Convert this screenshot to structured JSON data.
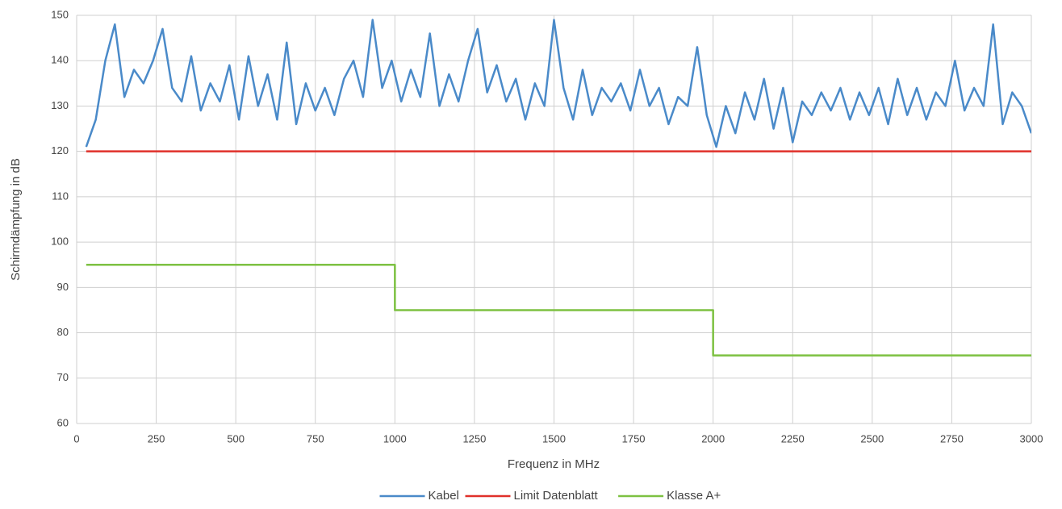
{
  "chart_data": {
    "type": "line",
    "x_label": "Frequenz in MHz",
    "y_label": "Schirmdämpfung in dB",
    "xlim": [
      0,
      3000
    ],
    "xticks": [
      0,
      250,
      500,
      750,
      1000,
      1250,
      1500,
      1750,
      2000,
      2250,
      2500,
      2750,
      3000
    ],
    "ylim": [
      60,
      150
    ],
    "yticks": [
      60,
      70,
      80,
      90,
      100,
      110,
      120,
      130,
      140,
      150
    ],
    "grid": true,
    "legend": "bottom",
    "series": [
      {
        "name": "Kabel",
        "color": "#4a8ac9",
        "x": [
          30,
          60,
          90,
          120,
          150,
          180,
          210,
          240,
          270,
          300,
          330,
          360,
          390,
          420,
          450,
          480,
          510,
          540,
          570,
          600,
          630,
          660,
          690,
          720,
          750,
          780,
          810,
          840,
          870,
          900,
          930,
          960,
          990,
          1020,
          1050,
          1080,
          1110,
          1140,
          1170,
          1200,
          1230,
          1260,
          1290,
          1320,
          1350,
          1380,
          1410,
          1440,
          1470,
          1500,
          1530,
          1560,
          1590,
          1620,
          1650,
          1680,
          1710,
          1740,
          1770,
          1800,
          1830,
          1860,
          1890,
          1920,
          1950,
          1980,
          2010,
          2040,
          2070,
          2100,
          2130,
          2160,
          2190,
          2220,
          2250,
          2280,
          2310,
          2340,
          2370,
          2400,
          2430,
          2460,
          2490,
          2520,
          2550,
          2580,
          2610,
          2640,
          2670,
          2700,
          2730,
          2760,
          2790,
          2820,
          2850,
          2880,
          2910,
          2940,
          2970,
          3000
        ],
        "values": [
          121,
          127,
          140,
          148,
          132,
          138,
          135,
          140,
          147,
          134,
          131,
          141,
          129,
          135,
          131,
          139,
          127,
          141,
          130,
          137,
          127,
          144,
          126,
          135,
          129,
          134,
          128,
          136,
          140,
          132,
          149,
          134,
          140,
          131,
          138,
          132,
          146,
          130,
          137,
          131,
          140,
          147,
          133,
          139,
          131,
          136,
          127,
          135,
          130,
          149,
          134,
          127,
          138,
          128,
          134,
          131,
          135,
          129,
          138,
          130,
          134,
          126,
          132,
          130,
          143,
          128,
          121,
          130,
          124,
          133,
          127,
          136,
          125,
          134,
          122,
          131,
          128,
          133,
          129,
          134,
          127,
          133,
          128,
          134,
          126,
          136,
          128,
          134,
          127,
          133,
          130,
          140,
          129,
          134,
          130,
          148,
          126,
          133,
          130,
          124
        ]
      },
      {
        "name": "Limit Datenblatt",
        "color": "#e0302a",
        "x": [
          30,
          3000
        ],
        "values": [
          120,
          120
        ]
      },
      {
        "name": "Klasse A+",
        "color": "#7dc142",
        "x": [
          30,
          1000,
          1000,
          2000,
          2000,
          3000
        ],
        "values": [
          95,
          95,
          85,
          85,
          75,
          75
        ]
      }
    ]
  }
}
